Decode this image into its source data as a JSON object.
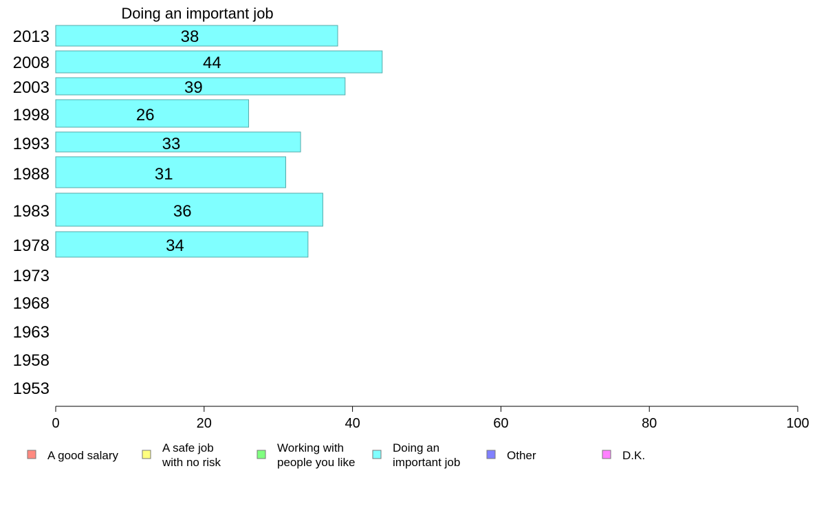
{
  "chart_data": {
    "type": "bar",
    "orientation": "horizontal",
    "title": "Doing an important job",
    "categories": [
      "2013",
      "2008",
      "2003",
      "1998",
      "1993",
      "1988",
      "1983",
      "1978",
      "1973",
      "1968",
      "1963",
      "1958",
      "1953"
    ],
    "values": [
      38,
      44,
      39,
      26,
      33,
      31,
      36,
      34,
      null,
      null,
      null,
      null,
      null
    ],
    "xlim": [
      0,
      100
    ],
    "xticks": [
      0,
      20,
      40,
      60,
      80,
      100
    ],
    "grid": false,
    "bar_color": "#80ffff",
    "bar_stroke": "#55aaaa",
    "legend": [
      {
        "lines": [
          "A good salary"
        ],
        "color": "#ff8a80"
      },
      {
        "lines": [
          "A safe job",
          "with no risk"
        ],
        "color": "#ffff80"
      },
      {
        "lines": [
          "Working with",
          "people you like"
        ],
        "color": "#80ff80"
      },
      {
        "lines": [
          "Doing an",
          "important job"
        ],
        "color": "#80ffff"
      },
      {
        "lines": [
          "Other"
        ],
        "color": "#8080ff"
      },
      {
        "lines": [
          "D.K."
        ],
        "color": "#ff80ff"
      }
    ],
    "legend_position": "bottom"
  }
}
